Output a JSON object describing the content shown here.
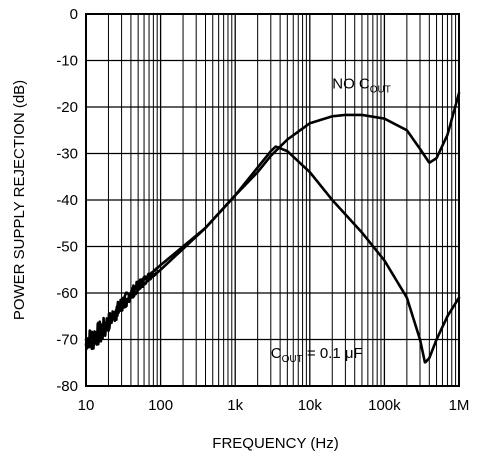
{
  "chart_data": {
    "type": "line",
    "title": "",
    "xlabel": "FREQUENCY (Hz)",
    "ylabel": "POWER SUPPLY REJECTION (dB)",
    "x_scale": "log",
    "xlim": [
      10,
      1000000
    ],
    "ylim": [
      -80,
      0
    ],
    "grid": true,
    "x_ticks": [
      {
        "value": 10,
        "label": "10"
      },
      {
        "value": 100,
        "label": "100"
      },
      {
        "value": 1000,
        "label": "1k"
      },
      {
        "value": 10000,
        "label": "10k"
      },
      {
        "value": 100000,
        "label": "100k"
      },
      {
        "value": 1000000,
        "label": "1M"
      }
    ],
    "y_ticks": [
      {
        "value": 0,
        "label": "0"
      },
      {
        "value": -10,
        "label": "-10"
      },
      {
        "value": -20,
        "label": "-20"
      },
      {
        "value": -30,
        "label": "-30"
      },
      {
        "value": -40,
        "label": "-40"
      },
      {
        "value": -50,
        "label": "-50"
      },
      {
        "value": -60,
        "label": "-60"
      },
      {
        "value": -70,
        "label": "-70"
      },
      {
        "value": -80,
        "label": "-80"
      }
    ],
    "annotations": [
      {
        "main": "NO C",
        "sub": "OUT",
        "suffix": "",
        "x": 20000,
        "y": -16
      },
      {
        "main": "C",
        "sub": "OUT",
        "suffix": " = 0.1 μF",
        "x": 3000,
        "y": -74
      }
    ],
    "series": [
      {
        "x": [
          10,
          12,
          15,
          20,
          30,
          50,
          100,
          200,
          400,
          1000,
          2000,
          3000,
          5000,
          10000,
          20000,
          30000,
          50000,
          100000,
          200000,
          300000,
          400000,
          500000,
          700000,
          1000000
        ],
        "y": [
          -70,
          -69.5,
          -68,
          -66,
          -62,
          -58,
          -54,
          -50,
          -46,
          -39,
          -34,
          -30.5,
          -27,
          -23.5,
          -22,
          -21.7,
          -21.7,
          -22.5,
          -25,
          -29,
          -32,
          -31,
          -26,
          -17
        ]
      },
      {
        "x": [
          10,
          12,
          15,
          20,
          30,
          50,
          100,
          200,
          400,
          1000,
          2000,
          3000,
          3500,
          5000,
          10000,
          20000,
          50000,
          100000,
          200000,
          300000,
          350000,
          400000,
          500000,
          700000,
          1000000
        ],
        "y": [
          -72,
          -71,
          -69.5,
          -67,
          -63,
          -59,
          -55,
          -50.5,
          -46,
          -39,
          -33,
          -29.5,
          -28.5,
          -29.5,
          -34,
          -40,
          -47,
          -53,
          -61,
          -70,
          -75,
          -74,
          -70,
          -65,
          -61
        ]
      }
    ]
  }
}
